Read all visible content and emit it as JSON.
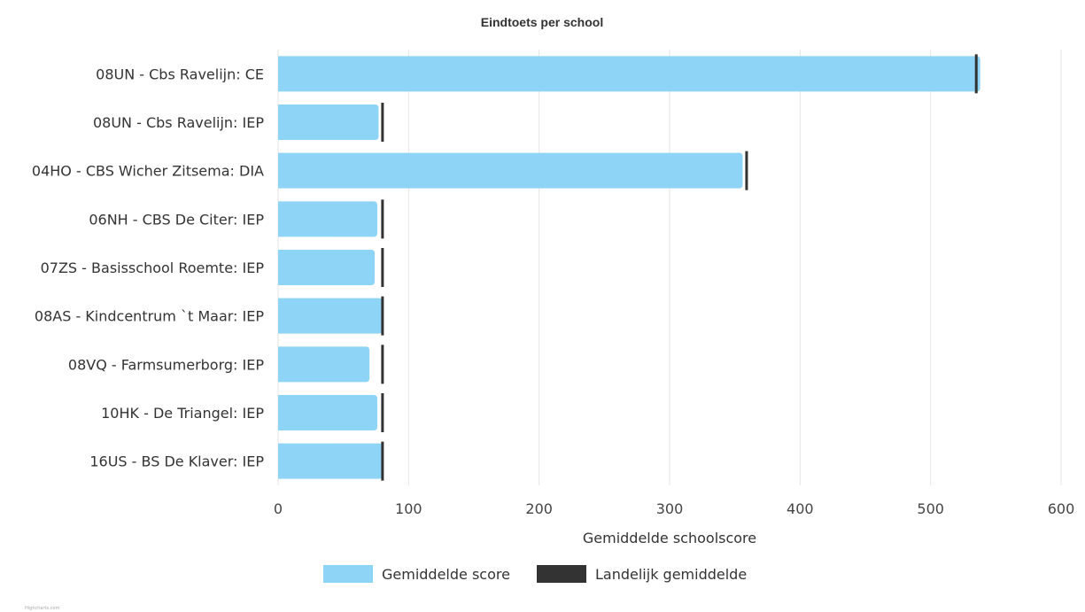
{
  "chart_data": {
    "type": "bar",
    "orientation": "horizontal",
    "title": "Eindtoets per school",
    "xlabel": "Gemiddelde schoolscore",
    "ylabel": "",
    "xlim": [
      0,
      600
    ],
    "xticks": [
      0,
      100,
      200,
      300,
      400,
      500,
      600
    ],
    "categories": [
      "08UN - Cbs Ravelijn: CE",
      "08UN - Cbs Ravelijn: IEP",
      "04HO - CBS Wicher Zitsema: DIA",
      "06NH - CBS De Citer: IEP",
      "07ZS - Basisschool Roemte: IEP",
      "08AS - Kindcentrum `t Maar: IEP",
      "08VQ - Farmsumerborg: IEP",
      "10HK - De Triangel: IEP",
      "16US - BS De Klaver: IEP"
    ],
    "series": [
      {
        "name": "Gemiddelde score",
        "type": "bar",
        "color": "#8dd4f7",
        "values": [
          538,
          77,
          356,
          76,
          74,
          80,
          70,
          76,
          80
        ]
      },
      {
        "name": "Landelijk gemiddelde",
        "type": "marker",
        "color": "#333333",
        "values": [
          535,
          80,
          359,
          80,
          80,
          80,
          80,
          80,
          80
        ]
      }
    ],
    "grid": true,
    "legend_position": "bottom-center",
    "credits": "Highcharts.com"
  }
}
